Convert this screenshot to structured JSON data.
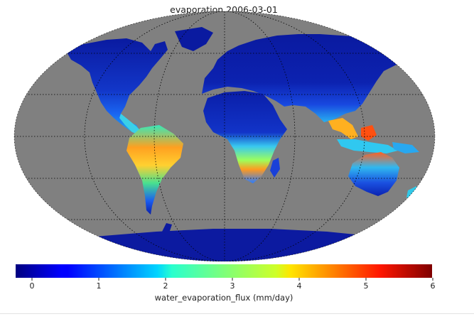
{
  "map": {
    "title": "evaporation 2006-03-01",
    "projection": "kavrayskiy-vii-style ellipse",
    "ocean_color": "#808080",
    "graticule": "dotted black"
  },
  "colorbar": {
    "label": "water_evaporation_flux (mm/day)",
    "min": 0,
    "max": 6,
    "ticks": [
      "0",
      "1",
      "2",
      "3",
      "4",
      "5",
      "6"
    ],
    "colormap": "jet"
  }
}
